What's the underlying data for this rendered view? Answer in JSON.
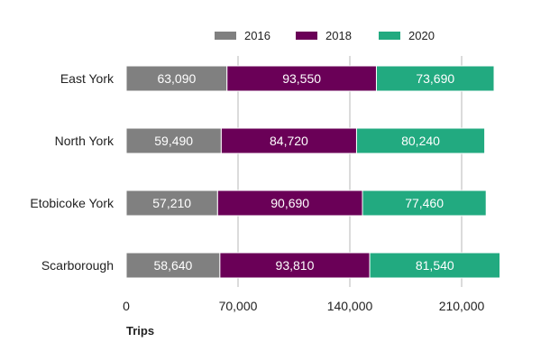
{
  "chart_data": {
    "type": "bar",
    "orientation": "horizontal",
    "stacked": true,
    "categories": [
      "East York",
      "North York",
      "Etobicoke York",
      "Scarborough"
    ],
    "series": [
      {
        "name": "2016",
        "color": "#808080",
        "values": [
          63090,
          59490,
          57210,
          58640
        ],
        "labels": [
          "63,090",
          "59,490",
          "57,210",
          "58,640"
        ]
      },
      {
        "name": "2018",
        "color": "#6a0057",
        "values": [
          93550,
          84720,
          90690,
          93810
        ],
        "labels": [
          "93,550",
          "84,720",
          "90,690",
          "93,810"
        ]
      },
      {
        "name": "2020",
        "color": "#22aa80",
        "values": [
          73690,
          80240,
          77460,
          81540
        ],
        "labels": [
          "73,690",
          "80,240",
          "77,460",
          "81,540"
        ]
      }
    ],
    "xlim": [
      0,
      240000
    ],
    "xticks": [
      0,
      70000,
      140000,
      210000
    ],
    "xtick_labels": [
      "0",
      "70,000",
      "140,000",
      "210,000"
    ],
    "xlabel": "Trips",
    "ylabel": "",
    "title": "",
    "grid": "vertical",
    "legend": "top"
  }
}
